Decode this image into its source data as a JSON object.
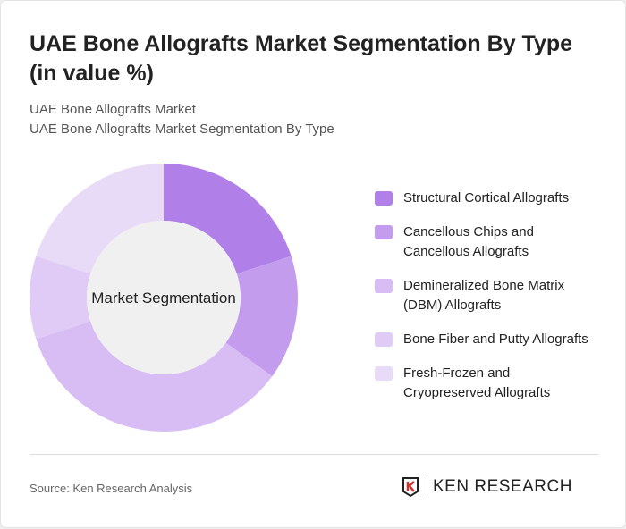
{
  "title": "UAE Bone Allografts Market Segmentation By Type (in value %)",
  "subtitle1": "UAE Bone Allografts Market",
  "subtitle2": "UAE Bone Allografts Market Segmentation By Type",
  "center_label": "Market Segmentation",
  "source": "Source: Ken Research Analysis",
  "logo": "KEN RESEARCH",
  "chart_data": {
    "type": "pie",
    "donut": true,
    "categories": [
      "Structural Cortical Allografts",
      "Cancellous Chips and Cancellous Allografts",
      "Demineralized Bone Matrix (DBM) Allografts",
      "Bone Fiber and Putty Allografts",
      "Fresh-Frozen and Cryopreserved Allografts"
    ],
    "legend_lines": [
      [
        "Structural Cortical Allografts"
      ],
      [
        "Cancellous Chips and",
        "Cancellous Allografts"
      ],
      [
        "Demineralized Bone Matrix",
        "(DBM) Allografts"
      ],
      [
        "Bone Fiber and Putty Allografts"
      ],
      [
        "Fresh-Frozen and",
        "Cryopreserved Allografts"
      ]
    ],
    "values": [
      20,
      15,
      35,
      10,
      20
    ],
    "colors": [
      "#b07fe8",
      "#c49cee",
      "#d8bdf5",
      "#dfcbf6",
      "#e8dbf8"
    ],
    "legend_position": "right"
  }
}
